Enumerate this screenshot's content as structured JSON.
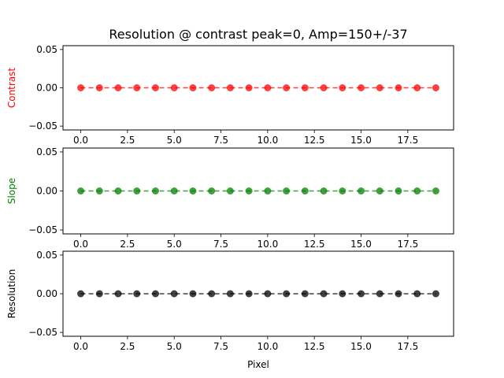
{
  "chart_data": [
    {
      "type": "line",
      "title": "Resolution @ contrast peak=0, Amp=150+/-37",
      "ylabel": "Contrast",
      "color": "#ff0000",
      "xlabel": "",
      "xlim": [
        -0.95,
        19.95
      ],
      "ylim": [
        -0.055,
        0.055
      ],
      "xticks": [
        0.0,
        2.5,
        5.0,
        7.5,
        10.0,
        12.5,
        15.0,
        17.5
      ],
      "xtick_labels": [
        "0.0",
        "2.5",
        "5.0",
        "7.5",
        "10.0",
        "12.5",
        "15.0",
        "17.5"
      ],
      "yticks": [
        -0.05,
        0.0,
        0.05
      ],
      "ytick_labels": [
        "−0.05",
        "0.00",
        "0.05"
      ],
      "line_style": "dashed",
      "marker": "circle",
      "grid": false,
      "x": [
        0,
        1,
        2,
        3,
        4,
        5,
        6,
        7,
        8,
        9,
        10,
        11,
        12,
        13,
        14,
        15,
        16,
        17,
        18,
        19
      ],
      "y": [
        0,
        0,
        0,
        0,
        0,
        0,
        0,
        0,
        0,
        0,
        0,
        0,
        0,
        0,
        0,
        0,
        0,
        0,
        0,
        0
      ]
    },
    {
      "type": "line",
      "title": "",
      "ylabel": "Slope",
      "color": "#008000",
      "xlabel": "",
      "xlim": [
        -0.95,
        19.95
      ],
      "ylim": [
        -0.055,
        0.055
      ],
      "xticks": [
        0.0,
        2.5,
        5.0,
        7.5,
        10.0,
        12.5,
        15.0,
        17.5
      ],
      "xtick_labels": [
        "0.0",
        "2.5",
        "5.0",
        "7.5",
        "10.0",
        "12.5",
        "15.0",
        "17.5"
      ],
      "yticks": [
        -0.05,
        0.0,
        0.05
      ],
      "ytick_labels": [
        "−0.05",
        "0.00",
        "0.05"
      ],
      "line_style": "dashed",
      "marker": "circle",
      "grid": false,
      "x": [
        0,
        1,
        2,
        3,
        4,
        5,
        6,
        7,
        8,
        9,
        10,
        11,
        12,
        13,
        14,
        15,
        16,
        17,
        18,
        19
      ],
      "y": [
        0,
        0,
        0,
        0,
        0,
        0,
        0,
        0,
        0,
        0,
        0,
        0,
        0,
        0,
        0,
        0,
        0,
        0,
        0,
        0
      ]
    },
    {
      "type": "line",
      "title": "",
      "ylabel": "Resolution",
      "color": "#000000",
      "xlabel": "Pixel",
      "xlim": [
        -0.95,
        19.95
      ],
      "ylim": [
        -0.055,
        0.055
      ],
      "xticks": [
        0.0,
        2.5,
        5.0,
        7.5,
        10.0,
        12.5,
        15.0,
        17.5
      ],
      "xtick_labels": [
        "0.0",
        "2.5",
        "5.0",
        "7.5",
        "10.0",
        "12.5",
        "15.0",
        "17.5"
      ],
      "yticks": [
        -0.05,
        0.0,
        0.05
      ],
      "ytick_labels": [
        "−0.05",
        "0.00",
        "0.05"
      ],
      "line_style": "dashed",
      "marker": "circle",
      "grid": false,
      "x": [
        0,
        1,
        2,
        3,
        4,
        5,
        6,
        7,
        8,
        9,
        10,
        11,
        12,
        13,
        14,
        15,
        16,
        17,
        18,
        19
      ],
      "y": [
        0,
        0,
        0,
        0,
        0,
        0,
        0,
        0,
        0,
        0,
        0,
        0,
        0,
        0,
        0,
        0,
        0,
        0,
        0,
        0
      ]
    }
  ]
}
